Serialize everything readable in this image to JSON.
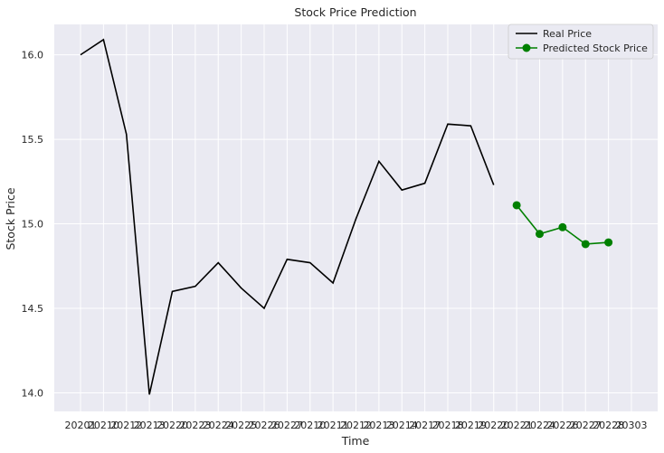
{
  "chart_data": {
    "type": "line",
    "title": "Stock Price Prediction",
    "xlabel": "Time",
    "ylabel": "Stock Price",
    "ylim": [
      13.89,
      16.18
    ],
    "yticks": [
      14.0,
      14.5,
      15.0,
      15.5,
      16.0
    ],
    "ytick_labels": [
      "14.0",
      "14.5",
      "15.0",
      "15.5",
      "16.0"
    ],
    "categories": [
      "20201",
      "20210",
      "20212",
      "20213",
      "20220",
      "20223",
      "20224",
      "20225",
      "20226",
      "20227",
      "20210",
      "20211",
      "20212",
      "20213",
      "20214",
      "20217",
      "20218",
      "20219",
      "20220",
      "20221",
      "20224",
      "20226",
      "20227",
      "20228",
      "20303"
    ],
    "series": [
      {
        "name": "Real Price",
        "color": "#000000",
        "marker": "none",
        "values": [
          16.0,
          16.09,
          15.53,
          13.99,
          14.6,
          14.63,
          14.77,
          14.62,
          14.5,
          14.79,
          14.77,
          14.65,
          15.03,
          15.37,
          15.2,
          15.24,
          15.59,
          15.58,
          15.23,
          null,
          null,
          null,
          null,
          null,
          null
        ]
      },
      {
        "name": "Predicted Stock Price",
        "color": "#008000",
        "marker": "circle",
        "values": [
          null,
          null,
          null,
          null,
          null,
          null,
          null,
          null,
          null,
          null,
          null,
          null,
          null,
          null,
          null,
          null,
          null,
          null,
          null,
          15.11,
          14.94,
          14.98,
          14.88,
          14.89,
          null
        ]
      }
    ],
    "grid": true,
    "legend_position": "top-right"
  },
  "colors": {
    "plot_background": "#eaeaf2",
    "grid": "#ffffff"
  }
}
